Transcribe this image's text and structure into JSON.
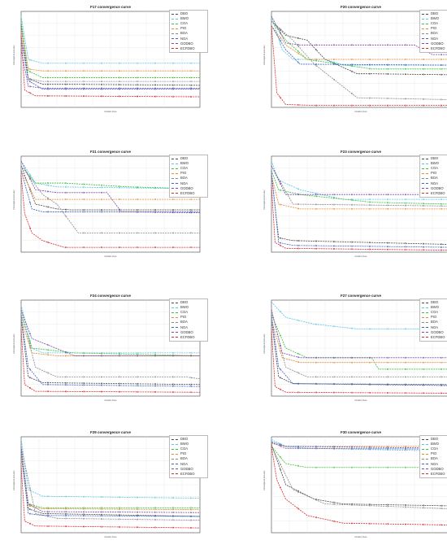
{
  "colors": {
    "DBO": "#4a4a4a",
    "BWO": "#55c6e8",
    "COA": "#3cc13c",
    "PIO": "#e88a30",
    "BOA": "#8a8a8a",
    "NOA": "#3b64c4",
    "GODBO": "#7a4fa6",
    "ECFDBO": "#d42a2a"
  },
  "legend": [
    "DBO",
    "BWO",
    "COA",
    "PIO",
    "BOA",
    "NOA",
    "GODBO",
    "ECFDBO"
  ],
  "chart_data": [
    {
      "type": "line",
      "title": "F17 convergence curve",
      "xlabel": "Iteration times",
      "ylabel": "Convergence accuracy",
      "xlim": [
        0,
        500
      ],
      "ylim": [
        0,
        1
      ],
      "grid": true,
      "legend_position": "top-right",
      "series": [
        {
          "name": "DBO",
          "x": [
            0,
            20,
            60,
            150,
            500
          ],
          "y": [
            0.85,
            0.3,
            0.24,
            0.24,
            0.23
          ]
        },
        {
          "name": "BWO",
          "x": [
            0,
            20,
            60,
            500
          ],
          "y": [
            0.95,
            0.5,
            0.46,
            0.46
          ]
        },
        {
          "name": "COA",
          "x": [
            0,
            20,
            60,
            500
          ],
          "y": [
            0.9,
            0.38,
            0.31,
            0.31
          ]
        },
        {
          "name": "PIO",
          "x": [
            0,
            20,
            60,
            500
          ],
          "y": [
            0.8,
            0.4,
            0.38,
            0.38
          ]
        },
        {
          "name": "BOA",
          "x": [
            0,
            20,
            60,
            500
          ],
          "y": [
            0.7,
            0.3,
            0.27,
            0.27
          ]
        },
        {
          "name": "NOA",
          "x": [
            0,
            20,
            60,
            500
          ],
          "y": [
            0.75,
            0.28,
            0.19,
            0.19
          ]
        },
        {
          "name": "GODBO",
          "x": [
            0,
            20,
            60,
            500
          ],
          "y": [
            0.6,
            0.22,
            0.2,
            0.2
          ]
        },
        {
          "name": "ECFDBO",
          "x": [
            0,
            10,
            40,
            500
          ],
          "y": [
            0.75,
            0.18,
            0.12,
            0.11
          ]
        }
      ]
    },
    {
      "type": "line",
      "title": "F20 convergence curve",
      "xlabel": "Iteration times",
      "ylabel": "Convergence accuracy",
      "xlim": [
        0,
        500
      ],
      "ylim": [
        0,
        1
      ],
      "grid": true,
      "legend_position": "top-right",
      "series": [
        {
          "name": "DBO",
          "x": [
            0,
            40,
            100,
            150,
            240,
            280,
            500
          ],
          "y": [
            0.9,
            0.75,
            0.7,
            0.5,
            0.35,
            0.35,
            0.34
          ]
        },
        {
          "name": "BWO",
          "x": [
            0,
            30,
            60,
            150,
            200,
            500
          ],
          "y": [
            0.95,
            0.6,
            0.5,
            0.5,
            0.44,
            0.44
          ]
        },
        {
          "name": "COA",
          "x": [
            0,
            40,
            100,
            280,
            500
          ],
          "y": [
            0.9,
            0.7,
            0.5,
            0.4,
            0.4
          ]
        },
        {
          "name": "PIO",
          "x": [
            0,
            40,
            100,
            500
          ],
          "y": [
            0.85,
            0.65,
            0.5,
            0.5
          ]
        },
        {
          "name": "BOA",
          "x": [
            0,
            60,
            120,
            240,
            500
          ],
          "y": [
            0.9,
            0.7,
            0.45,
            0.1,
            0.08
          ]
        },
        {
          "name": "NOA",
          "x": [
            0,
            40,
            80,
            500
          ],
          "y": [
            0.85,
            0.6,
            0.45,
            0.44
          ]
        },
        {
          "name": "GODBO",
          "x": [
            0,
            40,
            80,
            400,
            450,
            500
          ],
          "y": [
            0.95,
            0.67,
            0.65,
            0.65,
            0.55,
            0.55
          ]
        },
        {
          "name": "ECFDBO",
          "x": [
            0,
            15,
            40,
            120,
            500
          ],
          "y": [
            0.85,
            0.15,
            0.03,
            0.02,
            0.02
          ]
        }
      ]
    },
    {
      "type": "line",
      "title": "F21 convergence curve",
      "xlabel": "Iteration times",
      "ylabel": "Convergence accuracy",
      "xlim": [
        0,
        500
      ],
      "ylim": [
        0,
        1
      ],
      "grid": true,
      "legend_position": "top-right",
      "series": [
        {
          "name": "DBO",
          "x": [
            0,
            40,
            100,
            140,
            500
          ],
          "y": [
            0.9,
            0.5,
            0.45,
            0.44,
            0.44
          ]
        },
        {
          "name": "BWO",
          "x": [
            0,
            40,
            100,
            500
          ],
          "y": [
            0.95,
            0.72,
            0.68,
            0.66
          ]
        },
        {
          "name": "COA",
          "x": [
            0,
            40,
            120,
            300,
            500
          ],
          "y": [
            0.9,
            0.72,
            0.72,
            0.68,
            0.66
          ]
        },
        {
          "name": "PIO",
          "x": [
            0,
            40,
            100,
            500
          ],
          "y": [
            0.85,
            0.55,
            0.55,
            0.55
          ]
        },
        {
          "name": "BOA",
          "x": [
            0,
            60,
            100,
            160,
            500
          ],
          "y": [
            0.9,
            0.6,
            0.5,
            0.2,
            0.2
          ]
        },
        {
          "name": "NOA",
          "x": [
            0,
            30,
            60,
            500
          ],
          "y": [
            0.85,
            0.45,
            0.42,
            0.42
          ]
        },
        {
          "name": "GODBO",
          "x": [
            0,
            40,
            100,
            240,
            280,
            500
          ],
          "y": [
            0.95,
            0.65,
            0.62,
            0.62,
            0.42,
            0.41
          ]
        },
        {
          "name": "ECFDBO",
          "x": [
            0,
            10,
            30,
            60,
            120,
            500
          ],
          "y": [
            0.8,
            0.4,
            0.2,
            0.12,
            0.05,
            0.05
          ]
        }
      ]
    },
    {
      "type": "line",
      "title": "F23 convergence curve",
      "xlabel": "Iteration times",
      "ylabel": "Convergence accuracy",
      "xlim": [
        0,
        500
      ],
      "ylim": [
        0,
        1
      ],
      "grid": true,
      "legend_position": "top-right",
      "series": [
        {
          "name": "DBO",
          "x": [
            0,
            20,
            60,
            500
          ],
          "y": [
            0.8,
            0.15,
            0.12,
            0.08
          ]
        },
        {
          "name": "BWO",
          "x": [
            0,
            20,
            80,
            200,
            500
          ],
          "y": [
            0.95,
            0.75,
            0.65,
            0.55,
            0.55
          ]
        },
        {
          "name": "COA",
          "x": [
            0,
            20,
            80,
            280,
            500
          ],
          "y": [
            0.85,
            0.65,
            0.6,
            0.52,
            0.5
          ]
        },
        {
          "name": "PIO",
          "x": [
            0,
            20,
            80,
            500
          ],
          "y": [
            0.8,
            0.5,
            0.45,
            0.45
          ]
        },
        {
          "name": "BOA",
          "x": [
            0,
            60,
            500
          ],
          "y": [
            0.9,
            0.5,
            0.48
          ]
        },
        {
          "name": "NOA",
          "x": [
            0,
            20,
            60,
            500
          ],
          "y": [
            0.85,
            0.1,
            0.07,
            0.05
          ]
        },
        {
          "name": "GODBO",
          "x": [
            0,
            40,
            500
          ],
          "y": [
            0.9,
            0.6,
            0.6
          ]
        },
        {
          "name": "ECFDBO",
          "x": [
            0,
            10,
            40,
            500
          ],
          "y": [
            0.7,
            0.1,
            0.04,
            0.02
          ]
        }
      ]
    },
    {
      "type": "line",
      "title": "F24 convergence curve",
      "xlabel": "Iteration times",
      "ylabel": "Convergence accuracy",
      "xlim": [
        0,
        500
      ],
      "ylim": [
        0,
        1
      ],
      "grid": true,
      "legend_position": "top-right",
      "series": [
        {
          "name": "DBO",
          "x": [
            0,
            20,
            60,
            500
          ],
          "y": [
            0.8,
            0.2,
            0.14,
            0.12
          ]
        },
        {
          "name": "BWO",
          "x": [
            0,
            30,
            60,
            500
          ],
          "y": [
            0.95,
            0.5,
            0.45,
            0.45
          ]
        },
        {
          "name": "COA",
          "x": [
            0,
            30,
            150,
            500
          ],
          "y": [
            0.85,
            0.5,
            0.45,
            0.42
          ]
        },
        {
          "name": "PIO",
          "x": [
            0,
            30,
            100,
            500
          ],
          "y": [
            0.8,
            0.45,
            0.42,
            0.42
          ]
        },
        {
          "name": "BOA",
          "x": [
            0,
            40,
            100,
            460,
            500
          ],
          "y": [
            0.9,
            0.3,
            0.2,
            0.2,
            0.18
          ]
        },
        {
          "name": "NOA",
          "x": [
            0,
            20,
            60,
            500
          ],
          "y": [
            0.85,
            0.3,
            0.12,
            0.1
          ]
        },
        {
          "name": "GODBO",
          "x": [
            0,
            30,
            150,
            500
          ],
          "y": [
            0.9,
            0.6,
            0.42,
            0.42
          ]
        },
        {
          "name": "ECFDBO",
          "x": [
            0,
            10,
            40,
            500
          ],
          "y": [
            0.7,
            0.12,
            0.05,
            0.04
          ]
        }
      ]
    },
    {
      "type": "line",
      "title": "F27 convergence curve",
      "xlabel": "Iteration times",
      "ylabel": "Convergence accuracy",
      "xlim": [
        0,
        500
      ],
      "ylim": [
        0,
        1
      ],
      "grid": true,
      "legend_position": "top-right",
      "series": [
        {
          "name": "DBO",
          "x": [
            0,
            20,
            60,
            500
          ],
          "y": [
            0.8,
            0.2,
            0.13,
            0.11
          ]
        },
        {
          "name": "BWO",
          "x": [
            0,
            40,
            120,
            240,
            500
          ],
          "y": [
            0.98,
            0.82,
            0.75,
            0.7,
            0.7
          ]
        },
        {
          "name": "COA",
          "x": [
            0,
            40,
            100,
            280,
            300,
            500
          ],
          "y": [
            0.85,
            0.5,
            0.4,
            0.4,
            0.28,
            0.28
          ]
        },
        {
          "name": "PIO",
          "x": [
            0,
            30,
            80,
            500
          ],
          "y": [
            0.8,
            0.4,
            0.35,
            0.35
          ]
        },
        {
          "name": "BOA",
          "x": [
            0,
            40,
            100,
            500
          ],
          "y": [
            0.9,
            0.3,
            0.2,
            0.2
          ]
        },
        {
          "name": "NOA",
          "x": [
            0,
            20,
            60,
            500
          ],
          "y": [
            0.85,
            0.3,
            0.13,
            0.12
          ]
        },
        {
          "name": "GODBO",
          "x": [
            0,
            30,
            80,
            500
          ],
          "y": [
            0.9,
            0.45,
            0.4,
            0.4
          ]
        },
        {
          "name": "ECFDBO",
          "x": [
            0,
            10,
            40,
            500
          ],
          "y": [
            0.7,
            0.1,
            0.04,
            0.03
          ]
        }
      ]
    },
    {
      "type": "line",
      "title": "F29 convergence curve",
      "xlabel": "Iteration times",
      "ylabel": "Convergence accuracy",
      "xlim": [
        0,
        500
      ],
      "ylim": [
        0,
        1
      ],
      "grid": true,
      "legend_position": "top-right",
      "series": [
        {
          "name": "DBO",
          "x": [
            0,
            20,
            60,
            500
          ],
          "y": [
            0.8,
            0.25,
            0.2,
            0.17
          ]
        },
        {
          "name": "BWO",
          "x": [
            0,
            20,
            60,
            500
          ],
          "y": [
            0.98,
            0.45,
            0.38,
            0.36
          ]
        },
        {
          "name": "COA",
          "x": [
            0,
            20,
            60,
            500
          ],
          "y": [
            0.85,
            0.3,
            0.26,
            0.26
          ]
        },
        {
          "name": "PIO",
          "x": [
            0,
            20,
            60,
            500
          ],
          "y": [
            0.8,
            0.28,
            0.25,
            0.24
          ]
        },
        {
          "name": "BOA",
          "x": [
            0,
            40,
            100,
            500
          ],
          "y": [
            0.9,
            0.2,
            0.15,
            0.13
          ]
        },
        {
          "name": "NOA",
          "x": [
            0,
            20,
            60,
            500
          ],
          "y": [
            0.85,
            0.2,
            0.18,
            0.17
          ]
        },
        {
          "name": "GODBO",
          "x": [
            0,
            20,
            60,
            500
          ],
          "y": [
            0.9,
            0.3,
            0.22,
            0.21
          ]
        },
        {
          "name": "ECFDBO",
          "x": [
            0,
            10,
            40,
            500
          ],
          "y": [
            0.7,
            0.12,
            0.07,
            0.05
          ]
        }
      ]
    },
    {
      "type": "line",
      "title": "F30 convergence curve",
      "xlabel": "Iteration times",
      "ylabel": "Convergence accuracy",
      "xlim": [
        0,
        500
      ],
      "ylim": [
        0,
        1
      ],
      "grid": true,
      "legend_position": "top-right",
      "series": [
        {
          "name": "DBO",
          "x": [
            0,
            40,
            120,
            200,
            500
          ],
          "y": [
            0.92,
            0.5,
            0.35,
            0.3,
            0.28
          ]
        },
        {
          "name": "BWO",
          "x": [
            0,
            40,
            100,
            500
          ],
          "y": [
            0.97,
            0.9,
            0.88,
            0.85
          ]
        },
        {
          "name": "COA",
          "x": [
            0,
            40,
            100,
            500
          ],
          "y": [
            0.9,
            0.72,
            0.68,
            0.68
          ]
        },
        {
          "name": "PIO",
          "x": [
            0,
            40,
            500
          ],
          "y": [
            0.93,
            0.9,
            0.9
          ]
        },
        {
          "name": "BOA",
          "x": [
            0,
            60,
            150,
            500
          ],
          "y": [
            0.9,
            0.45,
            0.3,
            0.25
          ]
        },
        {
          "name": "NOA",
          "x": [
            0,
            40,
            500
          ],
          "y": [
            0.95,
            0.9,
            0.88
          ]
        },
        {
          "name": "GODBO",
          "x": [
            0,
            40,
            500
          ],
          "y": [
            0.94,
            0.88,
            0.87
          ]
        },
        {
          "name": "ECFDBO",
          "x": [
            0,
            15,
            40,
            100,
            200,
            500
          ],
          "y": [
            0.9,
            0.55,
            0.35,
            0.18,
            0.1,
            0.08
          ]
        }
      ]
    }
  ]
}
